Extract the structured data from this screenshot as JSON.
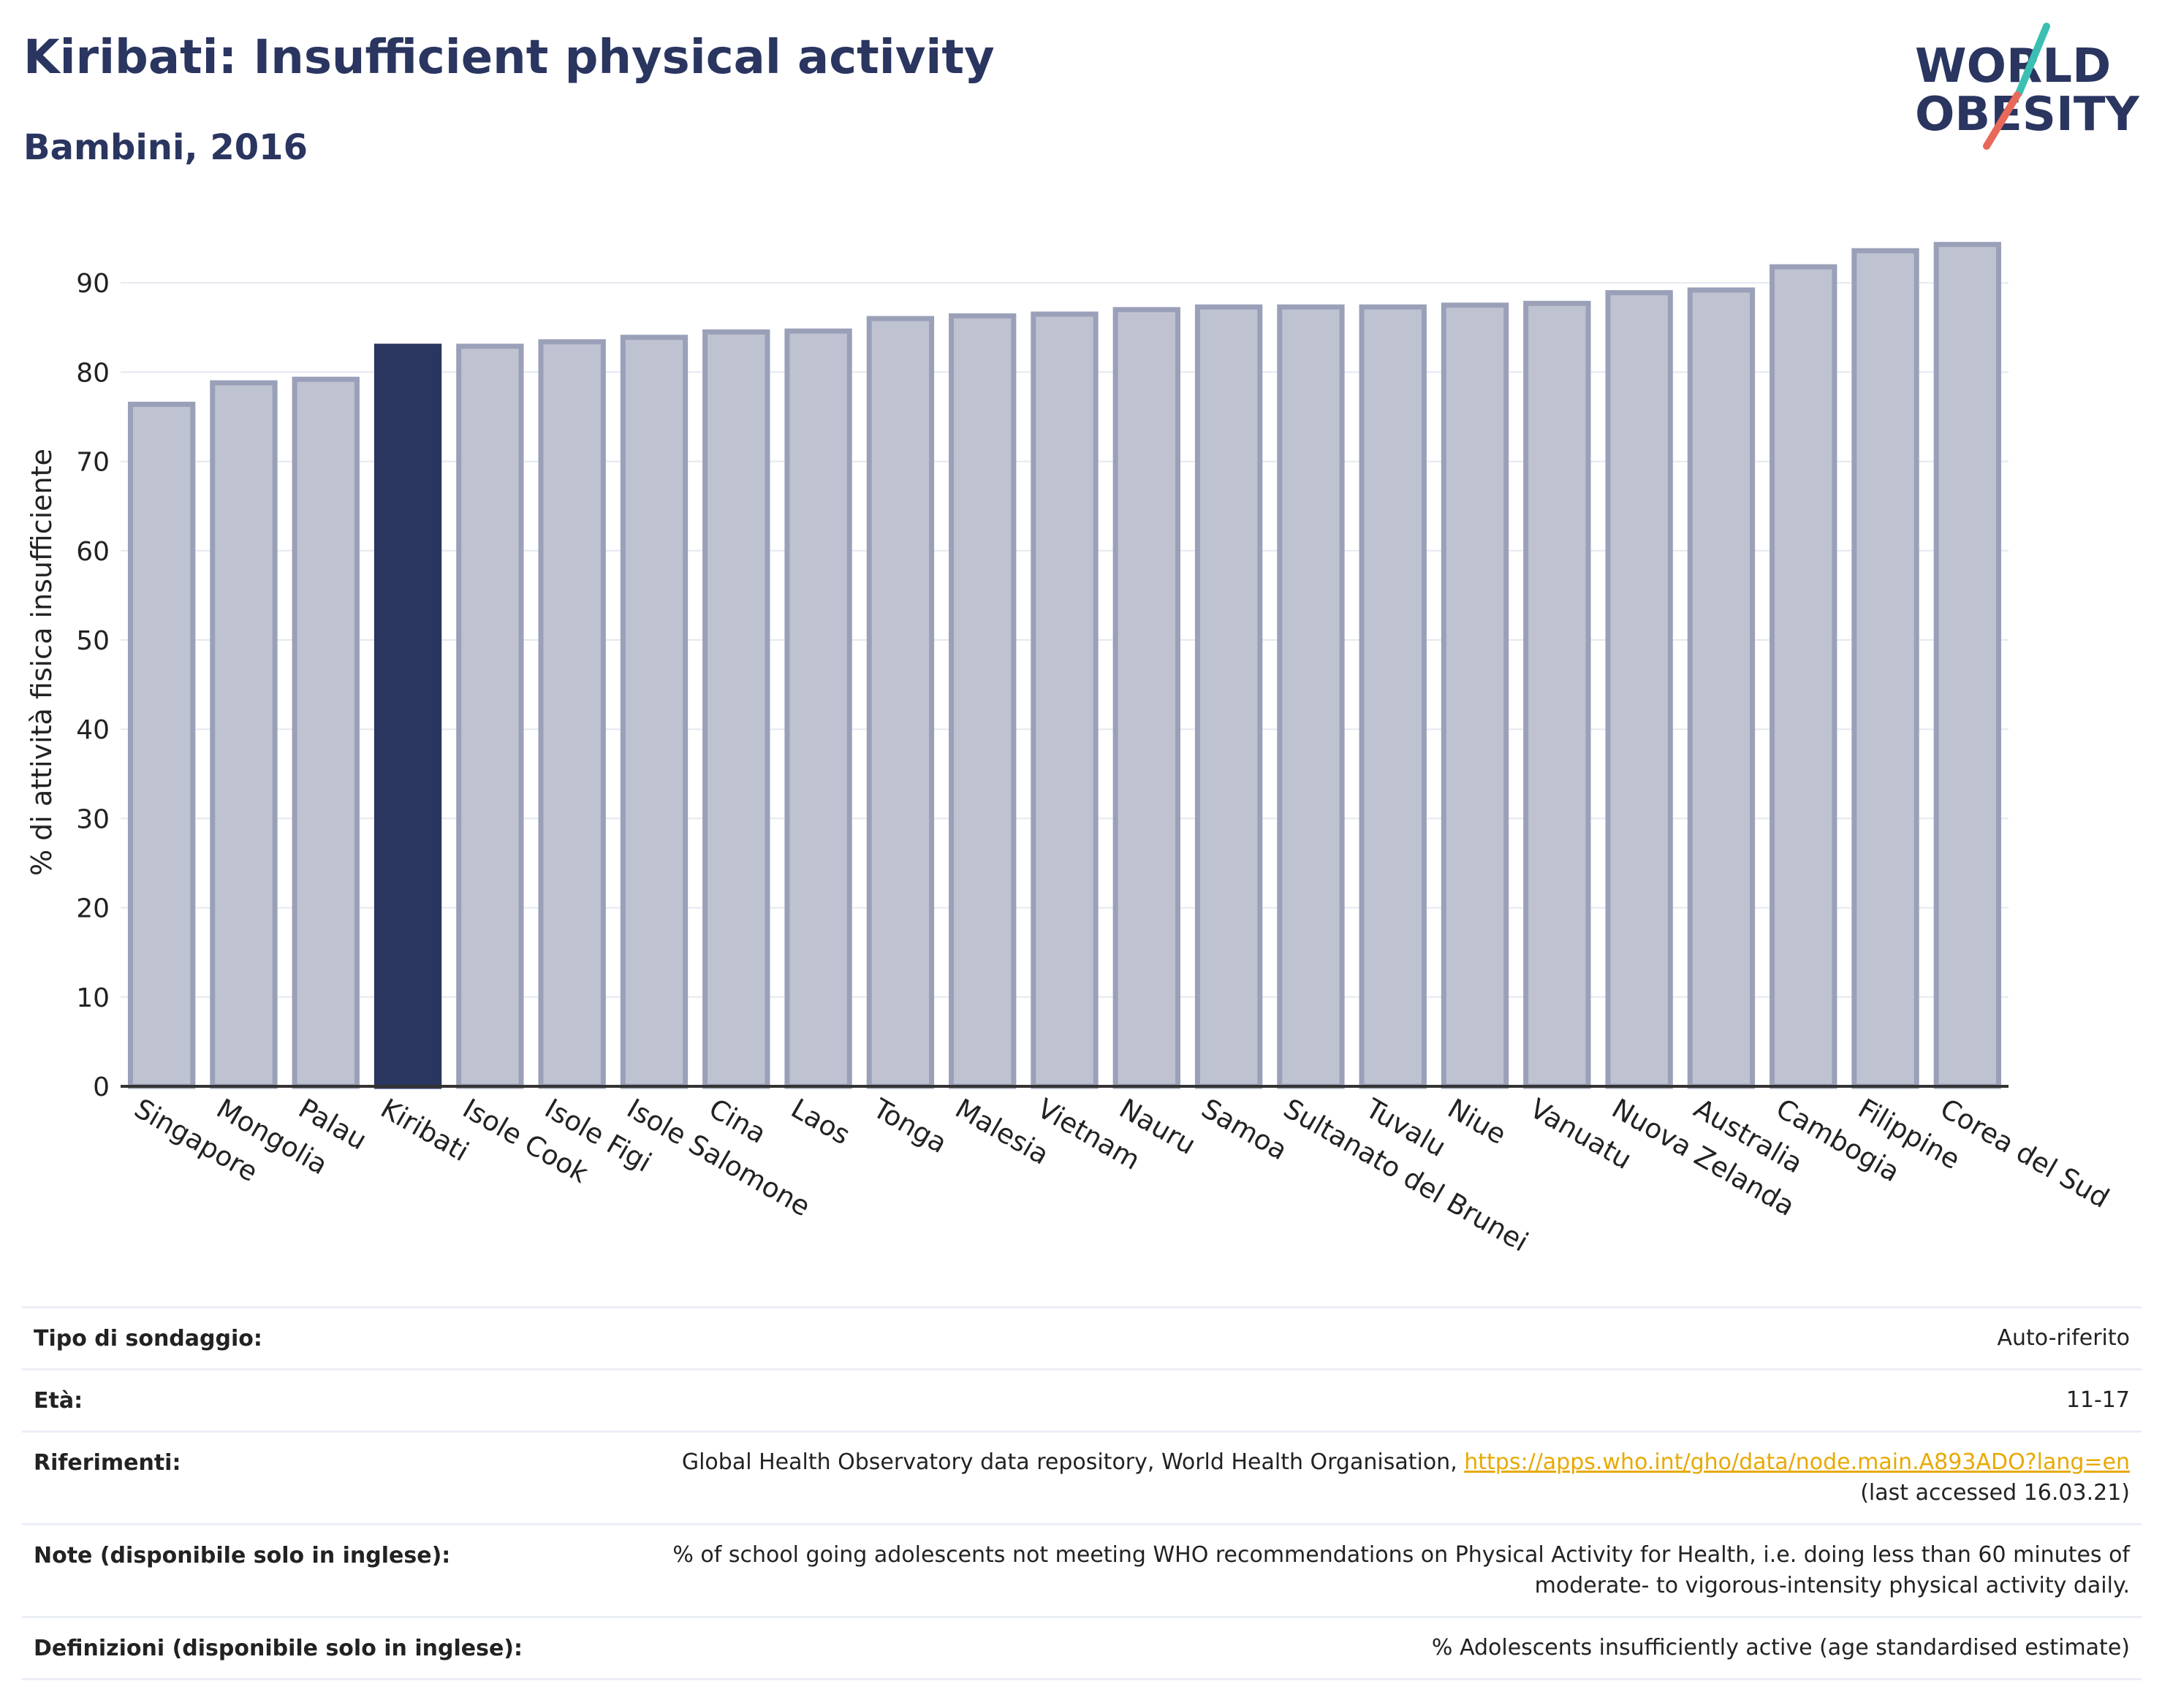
{
  "header": {
    "title": "Kiribati: Insufficient physical activity",
    "subtitle": "Bambini, 2016"
  },
  "logo": {
    "line1": "WORLD",
    "line2": "OBESITY",
    "accent_teal": "#3bbfb2",
    "accent_coral": "#e8685a"
  },
  "colors": {
    "bar": "#bfc3d1",
    "bar_border": "#9aa0b8",
    "highlight": "#2a3560",
    "grid": "#e6e8f0",
    "axis": "#333333"
  },
  "chart_data": {
    "type": "bar",
    "title": "",
    "xlabel": "",
    "ylabel": "% di attività fisica insufficiente",
    "ylim": [
      0,
      95
    ],
    "yticks": [
      0,
      10,
      20,
      30,
      40,
      50,
      60,
      70,
      80,
      90
    ],
    "highlight": "Kiribati",
    "grid": true,
    "categories": [
      "Singapore",
      "Mongolia",
      "Palau",
      "Kiribati",
      "Isole Cook",
      "Isole Figi",
      "Isole Salomone",
      "Cina",
      "Laos",
      "Tonga",
      "Malesia",
      "Vietnam",
      "Nauru",
      "Samoa",
      "Sultanato del Brunei",
      "Tuvalu",
      "Niue",
      "Vanuatu",
      "Nuova Zelanda",
      "Australia",
      "Cambogia",
      "Filippine",
      "Corea del Sud"
    ],
    "values": [
      76.4,
      78.8,
      79.2,
      82.9,
      82.9,
      83.4,
      83.9,
      84.5,
      84.6,
      86.0,
      86.3,
      86.5,
      87.0,
      87.3,
      87.3,
      87.3,
      87.5,
      87.7,
      88.9,
      89.2,
      91.8,
      93.6,
      94.3
    ]
  },
  "info": [
    {
      "label": "Tipo di sondaggio:",
      "value": "Auto-riferito"
    },
    {
      "label": "Età:",
      "value": "11-17"
    },
    {
      "label": "Riferimenti:",
      "value_prefix": "Global Health Observatory data repository, World Health Organisation, ",
      "link": "https://apps.who.int/gho/data/node.main.A893ADO?lang=en",
      "value_suffix": "(last accessed 16.03.21)"
    },
    {
      "label": "Note (disponibile solo in inglese):",
      "value_line1": "% of school going adolescents not meeting WHO recommendations on Physical Activity for Health, i.e. doing less than 60 minutes of",
      "value_line2": "moderate- to vigorous-intensity physical activity daily."
    },
    {
      "label": "Definizioni (disponibile solo in inglese):",
      "value": "% Adolescents insufficiently active (age standardised estimate)"
    }
  ]
}
